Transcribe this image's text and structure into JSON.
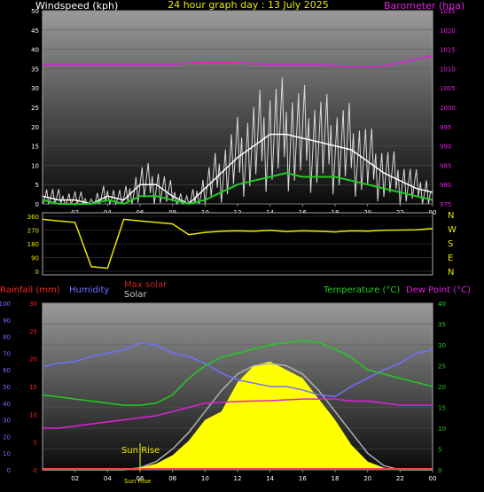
{
  "header": {
    "title": "24 hour graph day : 13 July 2025",
    "wind_label": "Windspeed (kph)",
    "baro_label": "Barometer (hpa)"
  },
  "compass": [
    "N",
    "W",
    "S",
    "E",
    "N"
  ],
  "legend2": {
    "rainfall": "Rainfall (mm)",
    "humidity": "Humidity",
    "max_solar": "Max solar",
    "solar": "Solar",
    "temperature": "Temperature (°C)",
    "dew_point": "Dew Point (°C)"
  },
  "annotations": {
    "sun_rise": "Sun Rise",
    "sun_set_overlap": "Sun Rise"
  },
  "colors": {
    "wind": "#ffffff",
    "gust": "#d8d8d8",
    "avg_wind": "#22cc22",
    "barometer": "#e020e0",
    "direction": "#e8e800",
    "humidity": "#7070ff",
    "temperature": "#22cc22",
    "dew_point": "#e020e0",
    "solar": "#ffff00",
    "max_solar": "#b0b0b0",
    "rainfall": "#ff2020"
  },
  "chart_data": [
    {
      "type": "line",
      "title": "24 hour graph day : 13 July 2025",
      "x_ticks": [
        "02",
        "04",
        "06",
        "08",
        "10",
        "12",
        "14",
        "16",
        "18",
        "20",
        "22",
        "00"
      ],
      "y_left": {
        "label": "Windspeed (kph)",
        "range": [
          0,
          50
        ],
        "ticks": [
          "0",
          "5",
          "10",
          "15",
          "20",
          "25",
          "30",
          "35",
          "40",
          "45",
          "50"
        ]
      },
      "y_right": {
        "label": "Barometer (hpa)",
        "range": [
          975,
          1025
        ],
        "ticks": [
          "975",
          "980",
          "985",
          "990",
          "995",
          "1000",
          "1005",
          "1010",
          "1015",
          "1020",
          "1025"
        ]
      },
      "x_hours": [
        0,
        1,
        2,
        3,
        4,
        5,
        6,
        7,
        8,
        9,
        10,
        11,
        12,
        13,
        14,
        15,
        16,
        17,
        18,
        19,
        20,
        21,
        22,
        23,
        24
      ],
      "series": [
        {
          "name": "",
          "unit": "kph",
          "values": [
            2,
            1,
            1,
            0,
            2,
            1,
            5,
            5,
            2,
            0,
            4,
            8,
            12,
            15,
            18,
            18,
            17,
            16,
            15,
            14,
            11,
            8,
            6,
            4,
            3
          ]
        },
        {
          "name": "",
          "unit": "hpa",
          "values": [
            1011,
            1011,
            1011,
            1011,
            1011,
            1011,
            1011,
            1011,
            1011,
            1011.5,
            1011.5,
            1011.5,
            1011.5,
            1011.3,
            1011,
            1011,
            1011,
            1011,
            1010.7,
            1010.5,
            1010.5,
            1010.7,
            1011.5,
            1012.5,
            1013.3
          ]
        },
        {
          "name": "",
          "unit": "kph",
          "values": [
            1,
            0,
            0,
            0,
            1,
            0,
            2,
            2,
            1,
            0,
            1,
            3,
            5,
            6,
            7,
            8,
            7,
            7,
            7,
            6,
            5,
            4,
            3,
            2,
            1
          ]
        }
      ]
    },
    {
      "type": "line",
      "x_ticks": [
        "02",
        "04",
        "06",
        "08",
        "10",
        "12",
        "14",
        "16",
        "18",
        "20",
        "22",
        "00"
      ],
      "y_left": {
        "ticks": [
          "360",
          "270",
          "180",
          "90",
          "0"
        ],
        "range": [
          0,
          360
        ]
      },
      "x_hours": [
        0,
        1,
        2,
        3,
        4,
        5,
        6,
        7,
        8,
        9,
        10,
        11,
        12,
        13,
        14,
        15,
        16,
        17,
        18,
        19,
        20,
        21,
        22,
        23,
        24
      ],
      "series": [
        {
          "name": "",
          "unit": "deg",
          "values": [
            340,
            330,
            320,
            30,
            20,
            340,
            330,
            320,
            310,
            240,
            255,
            262,
            265,
            262,
            268,
            260,
            265,
            262,
            258,
            265,
            263,
            268,
            270,
            272,
            280
          ]
        }
      ]
    },
    {
      "type": "line",
      "x_ticks": [
        "02",
        "04",
        "06",
        "08",
        "10",
        "12",
        "14",
        "16",
        "18",
        "20",
        "22",
        "00"
      ],
      "y_humidity": {
        "label": "Humidity",
        "range": [
          0,
          100
        ],
        "ticks": [
          "0",
          "10",
          "20",
          "30",
          "40",
          "50",
          "60",
          "70",
          "80",
          "90",
          "100"
        ]
      },
      "y_rain": {
        "label": "Rainfall (mm)",
        "range": [
          0,
          30
        ],
        "ticks": [
          "0",
          "5",
          "10",
          "15",
          "20",
          "25",
          "30"
        ]
      },
      "y_temp": {
        "label": "Temperature (°C)",
        "range": [
          0,
          40
        ],
        "ticks": [
          "0",
          "5",
          "10",
          "15",
          "20",
          "25",
          "30",
          "35",
          "40"
        ]
      },
      "x_hours": [
        0,
        1,
        2,
        3,
        4,
        5,
        6,
        7,
        8,
        9,
        10,
        11,
        12,
        13,
        14,
        15,
        16,
        17,
        18,
        19,
        20,
        21,
        22,
        23,
        24
      ],
      "series": [
        {
          "name": "Humidity",
          "unit": "%",
          "values": [
            62,
            64,
            65,
            68,
            70,
            72,
            76,
            75,
            70,
            68,
            64,
            58,
            54,
            52,
            50,
            50,
            48,
            45,
            44,
            50,
            55,
            60,
            64,
            70,
            72
          ]
        },
        {
          "name": "Temperature (°C)",
          "unit": "°C",
          "values": [
            18,
            17.5,
            17,
            16.5,
            16,
            15.5,
            15.5,
            16,
            18,
            22,
            25,
            27,
            28,
            29,
            30,
            30.5,
            31,
            30.5,
            29,
            27,
            24,
            23,
            22,
            21,
            20
          ]
        },
        {
          "name": "Dew Point (°C)",
          "unit": "°C",
          "values": [
            10,
            10,
            10.5,
            11,
            11.5,
            12,
            12.5,
            13,
            14,
            15,
            16,
            16.2,
            16.4,
            16.5,
            16.6,
            16.8,
            17,
            17,
            17,
            16.5,
            16.5,
            16,
            15.5,
            15.5,
            15.5
          ]
        },
        {
          "name": "Max solar",
          "unit": "W/m2",
          "values": [
            0,
            0,
            0,
            0,
            0,
            0,
            0.5,
            2,
            5,
            9,
            14,
            19,
            23,
            25,
            25.5,
            25,
            23,
            19,
            14,
            9,
            4,
            1,
            0,
            0,
            0
          ]
        },
        {
          "name": "Solar",
          "unit": "W/m2",
          "values": [
            0,
            0,
            0,
            0,
            0,
            0,
            0.5,
            1.5,
            3.5,
            7,
            12,
            14,
            21,
            25,
            26,
            24,
            22,
            17,
            12,
            6,
            2,
            0.5,
            0,
            0,
            0
          ]
        },
        {
          "name": "Rainfall (mm)",
          "unit": "mm",
          "values": [
            0,
            0,
            0,
            0,
            0,
            0,
            0,
            0,
            0,
            0,
            0,
            0,
            0,
            0,
            0,
            0,
            0,
            0,
            0,
            0,
            0,
            0,
            0,
            0,
            0
          ]
        }
      ]
    }
  ]
}
